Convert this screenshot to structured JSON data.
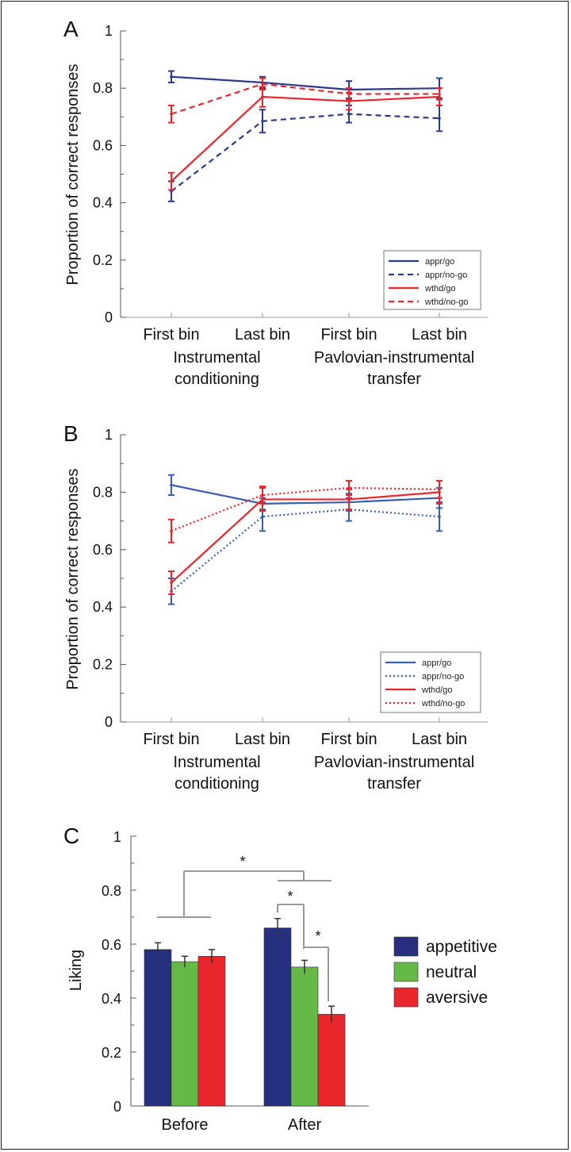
{
  "chart_data": [
    {
      "panel": "A",
      "type": "line",
      "ylabel": "Proportion of correct responses",
      "ylim": [
        0,
        1
      ],
      "yticks": [
        "0",
        "0.2",
        "0.4",
        "0.6",
        "0.8",
        "1"
      ],
      "ytick_values": [
        0,
        0.2,
        0.4,
        0.6,
        0.8,
        1
      ],
      "categories": [
        "First bin",
        "Last bin",
        "First bin",
        "Last bin"
      ],
      "group_labels": [
        {
          "lines": [
            "Instrumental",
            "conditioning"
          ],
          "span": [
            0,
            1
          ]
        },
        {
          "lines": [
            "Pavlovian-instrumental",
            "transfer"
          ],
          "span": [
            2,
            3
          ]
        }
      ],
      "legend_position": "bottom-right",
      "series": [
        {
          "name": "appr/go",
          "color": "#2b3a8f",
          "dash": "solid",
          "values": [
            0.84,
            0.82,
            0.795,
            0.8
          ],
          "errors": [
            0.02,
            0.02,
            0.03,
            0.035
          ]
        },
        {
          "name": "appr/no-go",
          "color": "#2b3a8f",
          "dash": "dashed",
          "values": [
            0.44,
            0.685,
            0.71,
            0.695
          ],
          "errors": [
            0.035,
            0.04,
            0.03,
            0.045
          ]
        },
        {
          "name": "wthd/go",
          "color": "#e8262c",
          "dash": "solid",
          "values": [
            0.475,
            0.77,
            0.755,
            0.77
          ],
          "errors": [
            0.03,
            0.035,
            0.03,
            0.03
          ]
        },
        {
          "name": "wthd/no-go",
          "color": "#e8262c",
          "dash": "dashed",
          "values": [
            0.71,
            0.815,
            0.78,
            0.78
          ],
          "errors": [
            0.03,
            0.02,
            0.02,
            0.02
          ]
        }
      ]
    },
    {
      "panel": "B",
      "type": "line",
      "ylabel": "Proportion of correct responses",
      "ylim": [
        0,
        1
      ],
      "yticks": [
        "0",
        "0.2",
        "0.4",
        "0.6",
        "0.8",
        "1"
      ],
      "ytick_values": [
        0,
        0.2,
        0.4,
        0.6,
        0.8,
        1
      ],
      "categories": [
        "First bin",
        "Last bin",
        "First bin",
        "Last bin"
      ],
      "group_labels": [
        {
          "lines": [
            "Instrumental",
            "conditioning"
          ],
          "span": [
            0,
            1
          ]
        },
        {
          "lines": [
            "Pavlovian-instrumental",
            "transfer"
          ],
          "span": [
            2,
            3
          ]
        }
      ],
      "legend_position": "bottom-right",
      "series": [
        {
          "name": "appr/go",
          "color": "#3a5fb0",
          "dash": "solid",
          "values": [
            0.825,
            0.76,
            0.765,
            0.78
          ],
          "errors": [
            0.035,
            0.02,
            0.03,
            0.035
          ]
        },
        {
          "name": "appr/no-go",
          "color": "#3a5fb0",
          "dash": "dotted",
          "values": [
            0.455,
            0.715,
            0.74,
            0.715
          ],
          "errors": [
            0.045,
            0.05,
            0.04,
            0.05
          ]
        },
        {
          "name": "wthd/go",
          "color": "#e8262c",
          "dash": "solid",
          "values": [
            0.485,
            0.775,
            0.775,
            0.8
          ],
          "errors": [
            0.04,
            0.04,
            0.035,
            0.04
          ]
        },
        {
          "name": "wthd/no-go",
          "color": "#e8262c",
          "dash": "dotted",
          "values": [
            0.665,
            0.79,
            0.815,
            0.81
          ],
          "errors": [
            0.04,
            0.03,
            0.025,
            0.03
          ]
        }
      ]
    },
    {
      "panel": "C",
      "type": "bar",
      "ylabel": "Liking",
      "ylim": [
        0,
        1
      ],
      "yticks": [
        "0",
        "0.2",
        "0.4",
        "0.6",
        "0.8",
        "1"
      ],
      "ytick_values": [
        0,
        0.2,
        0.4,
        0.6,
        0.8,
        1
      ],
      "categories": [
        "Before",
        "After"
      ],
      "legend_position": "right",
      "series": [
        {
          "name": "appetitive",
          "color": "#26307f",
          "values": [
            0.58,
            0.66
          ],
          "errors": [
            0.025,
            0.035
          ]
        },
        {
          "name": "neutral",
          "color": "#65b947",
          "values": [
            0.535,
            0.515
          ],
          "errors": [
            0.02,
            0.025
          ]
        },
        {
          "name": "aversive",
          "color": "#e8262c",
          "values": [
            0.555,
            0.34
          ],
          "errors": [
            0.025,
            0.03
          ]
        }
      ],
      "significance_marks": [
        "*",
        "*",
        "*"
      ]
    }
  ]
}
